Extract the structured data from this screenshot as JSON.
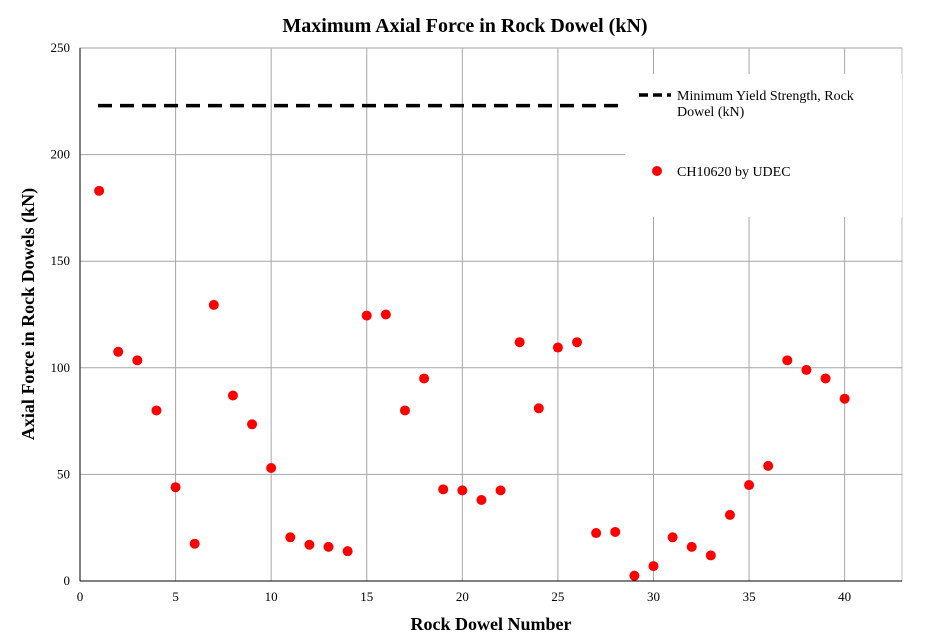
{
  "chart_data": {
    "type": "scatter",
    "title": "Maximum Axial Force in Rock Dowel (kN)",
    "xlabel": "Rock Dowel Number",
    "ylabel": "Axial Force in Rock Dowels (kN)",
    "xlim": [
      0,
      43
    ],
    "ylim": [
      0,
      250
    ],
    "xticks": [
      0,
      5,
      10,
      15,
      20,
      25,
      30,
      35,
      40
    ],
    "yticks": [
      0,
      50,
      100,
      150,
      200,
      250
    ],
    "grid": true,
    "legend_position": "top-right",
    "reference_line": {
      "name": "Minimum Yield Strength, Rock Dowel (kN)",
      "name_lines": [
        "Minimum Yield Strength, Rock",
        "Dowel (kN)"
      ],
      "y": 223,
      "style": "dashed",
      "color": "#000000"
    },
    "series": [
      {
        "name": "CH10620 by UDEC",
        "color": "#ff0000",
        "x": [
          1,
          2,
          3,
          4,
          5,
          6,
          7,
          8,
          9,
          10,
          11,
          12,
          13,
          14,
          15,
          16,
          17,
          18,
          19,
          20,
          21,
          22,
          23,
          24,
          25,
          26,
          27,
          28,
          29,
          30,
          31,
          32,
          33,
          34,
          35,
          36,
          37,
          38,
          39,
          40
        ],
        "y": [
          183,
          107.5,
          103.5,
          80,
          44,
          17.5,
          129.5,
          87,
          73.5,
          53,
          20.5,
          17,
          16,
          14,
          124.5,
          125,
          80,
          95,
          43,
          42.5,
          38,
          42.5,
          112,
          81,
          109.5,
          112,
          22.5,
          23,
          2.5,
          7,
          20.5,
          16,
          12,
          31,
          45,
          54,
          103.5,
          99,
          95,
          85.5
        ]
      }
    ]
  }
}
